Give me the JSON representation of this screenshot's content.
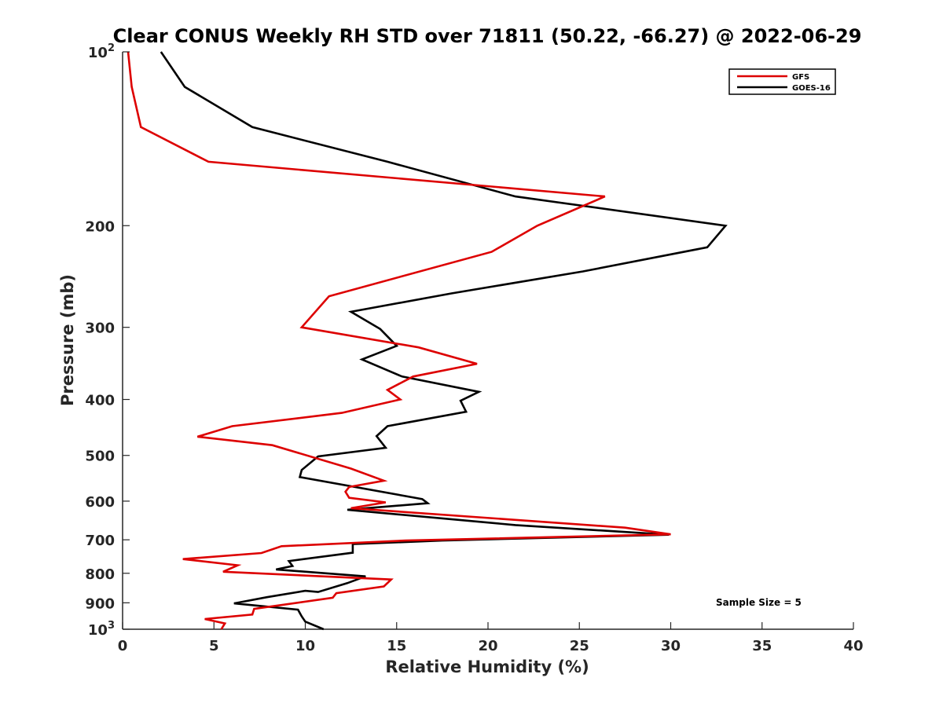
{
  "chart_data": {
    "type": "line",
    "title": "Clear CONUS Weekly RH STD over 71811 (50.22, -66.27) @ 2022-06-29",
    "xlabel": "Relative Humidity (%)",
    "ylabel": "Pressure (mb)",
    "xlim": [
      0,
      40
    ],
    "ylim": [
      100,
      1000
    ],
    "y_scale": "log",
    "y_reversed": true,
    "grid": false,
    "legend_position": "top-right",
    "x_ticks": [
      0,
      5,
      10,
      15,
      20,
      25,
      30,
      35,
      40
    ],
    "x_tick_labels": [
      "0",
      "5",
      "10",
      "15",
      "20",
      "25",
      "30",
      "35",
      "40"
    ],
    "y_ticks": [
      100,
      200,
      300,
      400,
      500,
      600,
      700,
      800,
      900,
      1000
    ],
    "y_tick_labels": [
      {
        "base": "10",
        "exp": "2"
      },
      {
        "base": "200",
        "exp": ""
      },
      {
        "base": "300",
        "exp": ""
      },
      {
        "base": "400",
        "exp": ""
      },
      {
        "base": "500",
        "exp": ""
      },
      {
        "base": "600",
        "exp": ""
      },
      {
        "base": "700",
        "exp": ""
      },
      {
        "base": "800",
        "exp": ""
      },
      {
        "base": "900",
        "exp": ""
      },
      {
        "base": "10",
        "exp": "3"
      }
    ],
    "annotation": "Sample Size = 5",
    "series": [
      {
        "name": "GFS",
        "color": "#dd0000",
        "points": [
          [
            0.3,
            100
          ],
          [
            0.5,
            115
          ],
          [
            1.0,
            135
          ],
          [
            4.7,
            155
          ],
          [
            26.4,
            178
          ],
          [
            22.7,
            200
          ],
          [
            20.2,
            222
          ],
          [
            11.3,
            265
          ],
          [
            9.8,
            300
          ],
          [
            16.2,
            325
          ],
          [
            19.4,
            347
          ],
          [
            15.9,
            365
          ],
          [
            14.5,
            385
          ],
          [
            15.2,
            400
          ],
          [
            12.0,
            422
          ],
          [
            6.0,
            445
          ],
          [
            4.1,
            464
          ],
          [
            8.2,
            480
          ],
          [
            12.5,
            527
          ],
          [
            14.3,
            553
          ],
          [
            12.4,
            567
          ],
          [
            12.2,
            578
          ],
          [
            12.4,
            592
          ],
          [
            14.4,
            603
          ],
          [
            12.5,
            617
          ],
          [
            27.5,
            667
          ],
          [
            30.0,
            685
          ],
          [
            15.5,
            702
          ],
          [
            8.7,
            718
          ],
          [
            7.6,
            738
          ],
          [
            3.3,
            756
          ],
          [
            6.3,
            775
          ],
          [
            5.5,
            795
          ],
          [
            14.7,
            820
          ],
          [
            14.3,
            843
          ],
          [
            11.7,
            866
          ],
          [
            11.5,
            882
          ],
          [
            7.2,
            922
          ],
          [
            7.1,
            943
          ],
          [
            4.5,
            960
          ],
          [
            5.6,
            977
          ],
          [
            5.4,
            1000
          ]
        ]
      },
      {
        "name": "GOES-16",
        "color": "#000000",
        "points": [
          [
            2.1,
            100
          ],
          [
            3.4,
            115
          ],
          [
            7.1,
            135
          ],
          [
            14.5,
            155
          ],
          [
            21.5,
            178
          ],
          [
            33.0,
            200
          ],
          [
            32.0,
            218
          ],
          [
            25.2,
            240
          ],
          [
            18.0,
            262
          ],
          [
            12.5,
            282
          ],
          [
            14.1,
            302
          ],
          [
            15.0,
            323
          ],
          [
            13.1,
            341
          ],
          [
            15.3,
            365
          ],
          [
            19.5,
            388
          ],
          [
            18.5,
            402
          ],
          [
            18.8,
            420
          ],
          [
            14.5,
            445
          ],
          [
            13.9,
            463
          ],
          [
            14.4,
            485
          ],
          [
            10.7,
            502
          ],
          [
            9.8,
            530
          ],
          [
            9.7,
            545
          ],
          [
            16.4,
            595
          ],
          [
            16.7,
            605
          ],
          [
            12.3,
            621
          ],
          [
            21.5,
            660
          ],
          [
            29.9,
            686
          ],
          [
            17.5,
            702
          ],
          [
            12.6,
            712
          ],
          [
            12.6,
            737
          ],
          [
            9.1,
            762
          ],
          [
            9.3,
            777
          ],
          [
            8.4,
            788
          ],
          [
            13.3,
            810
          ],
          [
            12.3,
            832
          ],
          [
            10.7,
            862
          ],
          [
            10.0,
            858
          ],
          [
            7.9,
            880
          ],
          [
            6.1,
            902
          ],
          [
            9.6,
            925
          ],
          [
            9.8,
            950
          ],
          [
            10.0,
            970
          ],
          [
            11.0,
            1000
          ]
        ]
      }
    ]
  }
}
